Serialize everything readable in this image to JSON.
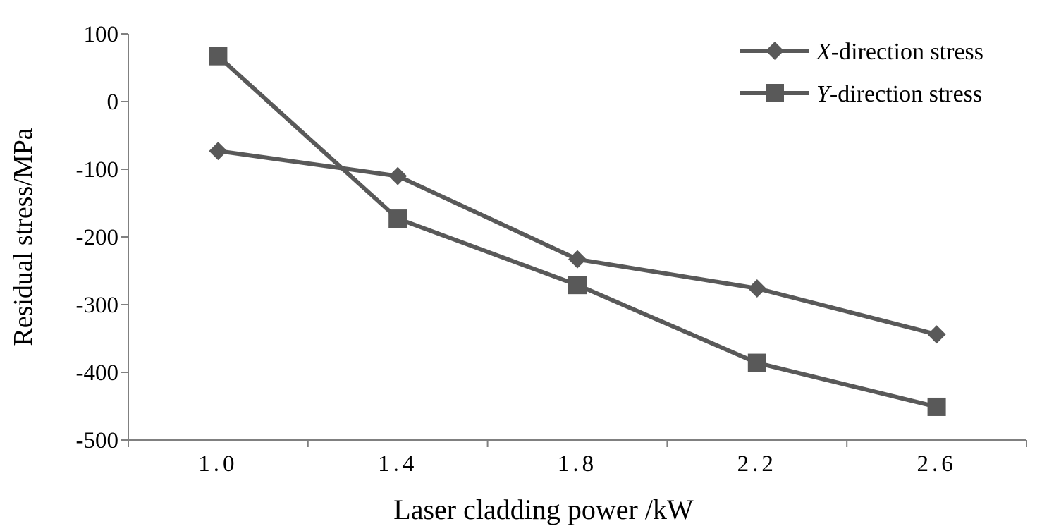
{
  "chart_data": {
    "type": "line",
    "title": "",
    "xlabel": "Laser cladding power /kW",
    "ylabel": "Residual stress/MPa",
    "categories": [
      "1.0",
      "1.4",
      "1.8",
      "2.2",
      "2.6"
    ],
    "x": [
      1.0,
      1.4,
      1.8,
      2.2,
      2.6
    ],
    "xlim": [
      0.8,
      2.8
    ],
    "ylim": [
      -500,
      100
    ],
    "yticks": [
      100,
      0,
      -100,
      -200,
      -300,
      -400,
      -500
    ],
    "grid": false,
    "legend_position": "top-right",
    "series": [
      {
        "name": "X-direction stress",
        "legend_italic": "X",
        "legend_rest": "-direction stress",
        "marker": "diamond",
        "color": "#595959",
        "values": [
          -73,
          -110,
          -233,
          -276,
          -344
        ]
      },
      {
        "name": "Y-direction stress",
        "legend_italic": "Y",
        "legend_rest": "-direction stress",
        "marker": "square",
        "color": "#595959",
        "values": [
          67,
          -173,
          -271,
          -386,
          -451
        ]
      }
    ]
  }
}
